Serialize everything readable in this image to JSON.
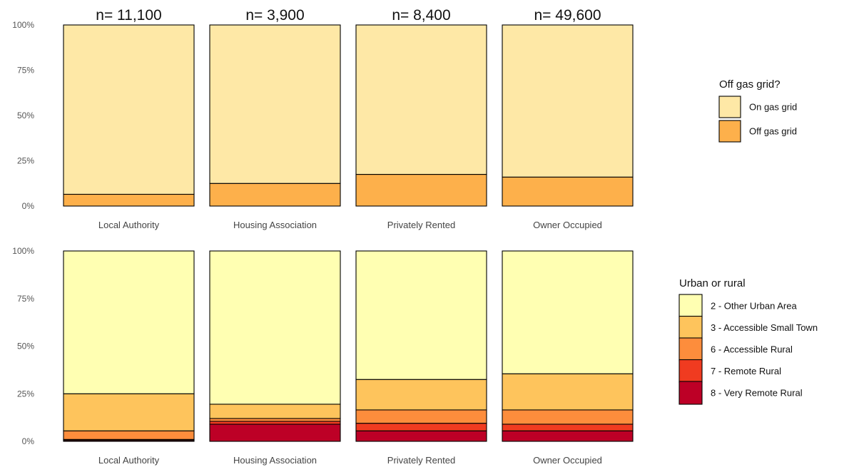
{
  "chart_data": [
    {
      "type": "bar",
      "stacked": true,
      "percent": true,
      "categories": [
        "Local Authority",
        "Housing Association",
        "Privately Rented",
        "Owner Occupied"
      ],
      "bar_labels": [
        "n= 11,100",
        "n= 3,900",
        "n= 8,400",
        "n= 49,600"
      ],
      "y_ticks": [
        "0%",
        "25%",
        "50%",
        "75%",
        "100%"
      ],
      "ylim": [
        0,
        100
      ],
      "grid": false,
      "legend_position": "right",
      "legend_title": "Off gas grid?",
      "series": [
        {
          "name": "Off gas grid",
          "color": "#FDB04B",
          "values": [
            6.5,
            12.5,
            17.5,
            16
          ]
        },
        {
          "name": "On gas grid",
          "color": "#FEE8A6",
          "values": [
            93.5,
            87.5,
            82.5,
            84
          ]
        }
      ],
      "legend_order": [
        "On gas grid",
        "Off gas grid"
      ]
    },
    {
      "type": "bar",
      "stacked": true,
      "percent": true,
      "categories": [
        "Local Authority",
        "Housing Association",
        "Privately Rented",
        "Owner Occupied"
      ],
      "y_ticks": [
        "0%",
        "25%",
        "50%",
        "75%",
        "100%"
      ],
      "ylim": [
        0,
        100
      ],
      "grid": false,
      "legend_position": "right",
      "legend_title": "Urban or rural",
      "series": [
        {
          "name": "8 - Very Remote Rural",
          "color": "#BD0026",
          "values": [
            0.5,
            9,
            5.5,
            5.5
          ]
        },
        {
          "name": "7 - Remote Rural",
          "color": "#F03B20",
          "values": [
            0.5,
            1.5,
            4,
            3.5
          ]
        },
        {
          "name": "6 - Accessible Rural",
          "color": "#FD8D3C",
          "values": [
            4.5,
            1.5,
            7,
            7.5
          ]
        },
        {
          "name": "3 - Accessible Small Town",
          "color": "#FEC45C",
          "values": [
            19.5,
            7.5,
            16,
            19
          ]
        },
        {
          "name": "2 - Other Urban Area",
          "color": "#FFFFB2",
          "values": [
            75,
            80.5,
            67.5,
            64.5
          ]
        }
      ],
      "legend_order": [
        "2 - Other Urban Area",
        "3 - Accessible Small Town",
        "6 - Accessible Rural",
        "7 - Remote Rural",
        "8 - Very Remote Rural"
      ]
    }
  ]
}
